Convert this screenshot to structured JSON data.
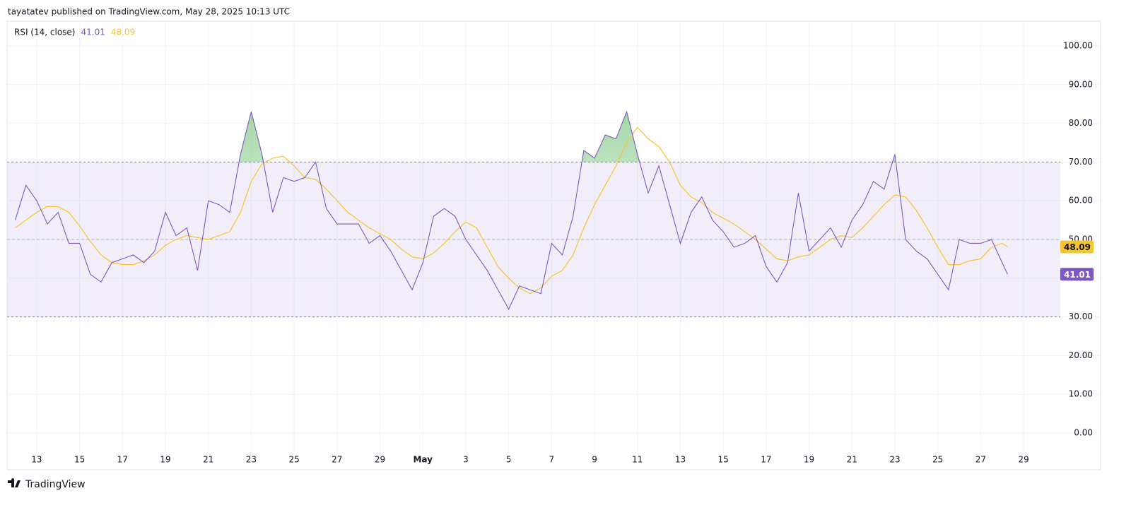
{
  "header": {
    "text": "tayatatev published on TradingView.com, May 28, 2025 10:13 UTC"
  },
  "footer": {
    "brand": "TradingView"
  },
  "chart_data": {
    "type": "line",
    "indicator": "RSI (14, close)",
    "x": [
      12,
      12.5,
      13,
      13.5,
      14,
      14.5,
      15,
      15.5,
      16,
      16.5,
      17,
      17.5,
      18,
      18.5,
      19,
      19.5,
      20,
      20.5,
      21,
      21.5,
      22,
      22.5,
      23,
      23.5,
      24,
      24.5,
      25,
      25.5,
      26,
      26.5,
      27,
      27.5,
      28,
      28.5,
      29,
      29.5,
      30,
      30.5,
      31,
      31.5,
      32,
      32.5,
      33,
      33.5,
      34,
      34.5,
      35,
      35.5,
      36,
      36.5,
      37,
      37.5,
      38,
      38.5,
      39,
      39.5,
      40,
      40.5,
      41,
      41.5,
      42,
      42.5,
      43,
      43.5,
      44,
      44.5,
      45,
      45.5,
      46,
      46.5,
      47,
      47.5,
      48,
      48.5,
      49,
      49.5,
      50,
      50.5,
      51,
      51.5,
      52,
      52.5,
      53,
      53.5,
      54,
      54.5,
      55,
      55.5,
      56,
      56.5,
      57,
      57.5,
      58,
      58.25
    ],
    "series": [
      {
        "color": "#7e57c2",
        "values": [
          55,
          64,
          60,
          54,
          57,
          49,
          49,
          41,
          39,
          44,
          45,
          46,
          44,
          47,
          57,
          51,
          53,
          42,
          60,
          59,
          57,
          72,
          83,
          72,
          57,
          66,
          65,
          66,
          70,
          58,
          54,
          54,
          54,
          49,
          51,
          47,
          42,
          37,
          44,
          56,
          58,
          56,
          50,
          46,
          42,
          37,
          32,
          38,
          37,
          36,
          49,
          46,
          56,
          73,
          71,
          77,
          76,
          83,
          72,
          62,
          69,
          59,
          49,
          57,
          61,
          55,
          52,
          48,
          49,
          51,
          43,
          39,
          44,
          62,
          47,
          50,
          53,
          48,
          55,
          59,
          65,
          63,
          72,
          50,
          47,
          45,
          41,
          37,
          50,
          49,
          49,
          50,
          44,
          41.01
        ]
      },
      {
        "color": "#f5c530",
        "values": [
          53,
          55,
          57,
          58.5,
          58.5,
          57,
          53.5,
          49.5,
          46,
          44,
          43.5,
          43.5,
          44.5,
          46,
          48.5,
          50,
          51,
          50.5,
          50,
          51,
          52,
          57,
          65,
          69.5,
          71,
          71.5,
          69,
          66,
          65.5,
          63,
          60,
          57,
          55,
          53,
          51.5,
          50,
          47.5,
          45.5,
          45,
          46.5,
          49,
          52,
          54.5,
          53,
          48,
          43,
          40,
          37.5,
          36,
          37.5,
          40.5,
          42,
          46,
          53,
          59,
          64,
          69,
          75,
          79,
          76,
          74,
          70,
          64,
          61,
          59.5,
          57,
          55.5,
          54,
          52,
          50,
          47.5,
          45,
          44.5,
          45.5,
          46,
          48,
          50,
          51,
          50.5,
          53,
          56,
          59,
          61.5,
          61,
          57.5,
          53,
          48,
          43.5,
          43.5,
          44.5,
          45,
          48,
          49,
          48.09
        ]
      }
    ],
    "bands": {
      "upper": 70,
      "middle": 50,
      "lower": 30
    },
    "overbought_fill_color": "#4caf50",
    "band_color": "#7e57c2",
    "xlim": [
      11.62,
      60.71
    ],
    "ylim": [
      -4.93,
      106.39
    ],
    "xticks": [
      13,
      15,
      17,
      19,
      21,
      23,
      25,
      27,
      29,
      {
        "value": 31,
        "label": "May"
      },
      {
        "value": 33,
        "label": "3"
      },
      {
        "value": 35,
        "label": "5"
      },
      {
        "value": 37,
        "label": "7"
      },
      {
        "value": 39,
        "label": "9"
      },
      {
        "value": 41,
        "label": "11"
      },
      {
        "value": 43,
        "label": "13"
      },
      {
        "value": 45,
        "label": "15"
      },
      {
        "value": 47,
        "label": "17"
      },
      {
        "value": 49,
        "label": "19"
      },
      {
        "value": 51,
        "label": "21"
      },
      {
        "value": 53,
        "label": "23"
      },
      {
        "value": 55,
        "label": "25"
      },
      {
        "value": 57,
        "label": "27"
      },
      {
        "value": 59,
        "label": "29"
      }
    ],
    "yticks": [
      {
        "value": 0,
        "label": "0.00"
      },
      {
        "value": 10,
        "label": "10.00"
      },
      {
        "value": 20,
        "label": "20.00"
      },
      {
        "value": 30,
        "label": "30.00"
      },
      {
        "value": 40,
        "label": "40.00"
      },
      {
        "value": 50,
        "label": "50.00"
      },
      {
        "value": 60,
        "label": "60.00"
      },
      {
        "value": 70,
        "label": "70.00"
      },
      {
        "value": 80,
        "label": "80.00"
      },
      {
        "value": 90,
        "label": "90.00"
      },
      {
        "value": 100,
        "label": "100.00"
      }
    ],
    "grid": true
  }
}
